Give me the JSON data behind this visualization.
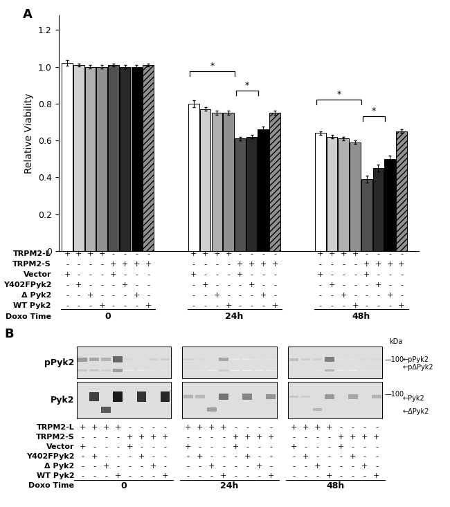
{
  "ylabel": "Relative Viability",
  "yticks": [
    0,
    0.2,
    0.4,
    0.6,
    0.8,
    1.0,
    1.2
  ],
  "groups": [
    "0",
    "24h",
    "48h"
  ],
  "bar_values": {
    "0": [
      1.02,
      1.01,
      1.0,
      1.0,
      1.01,
      1.0,
      1.0,
      1.01
    ],
    "24h": [
      0.8,
      0.77,
      0.75,
      0.75,
      0.61,
      0.62,
      0.66,
      0.75
    ],
    "48h": [
      0.64,
      0.62,
      0.61,
      0.59,
      0.39,
      0.45,
      0.5,
      0.65
    ]
  },
  "bar_errors": {
    "0": [
      0.015,
      0.008,
      0.008,
      0.008,
      0.008,
      0.008,
      0.008,
      0.008
    ],
    "24h": [
      0.018,
      0.01,
      0.01,
      0.01,
      0.01,
      0.01,
      0.015,
      0.01
    ],
    "48h": [
      0.01,
      0.01,
      0.01,
      0.01,
      0.018,
      0.018,
      0.018,
      0.01
    ]
  },
  "bar_colors": [
    "#ffffff",
    "#d0d0d0",
    "#b0b0b0",
    "#909090",
    "#505050",
    "#282828",
    "#000000",
    "#909090"
  ],
  "bar_hatch": [
    null,
    null,
    null,
    null,
    null,
    null,
    null,
    "////"
  ],
  "doxo_labels": [
    "0",
    "24h",
    "48h"
  ],
  "row_labels": [
    "TRPM2-L",
    "TRPM2-S",
    "Vector",
    "Y402FPyk2",
    "Δ Pyk2",
    "WT Pyk2"
  ],
  "table_data": [
    [
      "+",
      "+",
      "+",
      "+",
      "-",
      "-",
      "-",
      "-",
      "+",
      "+",
      "+",
      "+",
      "-",
      "-",
      "-",
      "-",
      "+",
      "+",
      "+",
      "+",
      "-",
      "-",
      "-",
      "-"
    ],
    [
      "-",
      "-",
      "-",
      "-",
      "+",
      "+",
      "+",
      "+",
      "-",
      "-",
      "-",
      "-",
      "+",
      "+",
      "+",
      "+",
      "-",
      "-",
      "-",
      "-",
      "+",
      "+",
      "+",
      "+"
    ],
    [
      "+",
      "-",
      "-",
      "-",
      "+",
      "-",
      "-",
      "-",
      "+",
      "-",
      "-",
      "-",
      "+",
      "-",
      "-",
      "-",
      "+",
      "-",
      "-",
      "-",
      "+",
      "-",
      "-",
      "-"
    ],
    [
      "-",
      "+",
      "-",
      "-",
      "-",
      "+",
      "-",
      "-",
      "-",
      "+",
      "-",
      "-",
      "-",
      "+",
      "-",
      "-",
      "-",
      "+",
      "-",
      "-",
      "-",
      "+",
      "-",
      "-"
    ],
    [
      "-",
      "-",
      "+",
      "-",
      "-",
      "-",
      "+",
      "-",
      "-",
      "-",
      "+",
      "-",
      "-",
      "-",
      "+",
      "-",
      "-",
      "-",
      "+",
      "-",
      "-",
      "-",
      "+",
      "-"
    ],
    [
      "-",
      "-",
      "-",
      "+",
      "-",
      "-",
      "-",
      "+",
      "-",
      "-",
      "-",
      "+",
      "-",
      "-",
      "-",
      "+",
      "-",
      "-",
      "-",
      "+",
      "-",
      "-",
      "-",
      "+"
    ]
  ],
  "wb_ppyk2_bands": {
    "g0": [
      [
        0.4,
        0.35,
        0.3,
        0.6,
        0.15,
        0.12,
        0.18,
        0.2
      ],
      [
        0.22,
        0.22,
        0.18,
        0.38,
        0.08,
        0.08,
        0.1,
        0.1
      ]
    ],
    "g1": [
      [
        0.18,
        0.15,
        0.12,
        0.35,
        0.08,
        0.08,
        0.1,
        0.1
      ],
      [
        0.1,
        0.1,
        0.08,
        0.2,
        0.05,
        0.05,
        0.08,
        0.08
      ]
    ],
    "g2": [
      [
        0.25,
        0.2,
        0.18,
        0.5,
        0.1,
        0.1,
        0.15,
        0.15
      ],
      [
        0.14,
        0.12,
        0.1,
        0.3,
        0.08,
        0.08,
        0.1,
        0.1
      ]
    ]
  },
  "wb_pyk2_upper": {
    "g0": [
      0.0,
      0.75,
      0.0,
      0.9,
      0.0,
      0.8,
      0.0,
      0.85
    ],
    "g1": [
      0.3,
      0.28,
      0.0,
      0.55,
      0.0,
      0.48,
      0.0,
      0.42
    ],
    "g2": [
      0.22,
      0.2,
      0.0,
      0.4,
      0.0,
      0.35,
      0.0,
      0.3
    ]
  },
  "wb_pyk2_lower": {
    "g0": [
      0.0,
      0.0,
      0.65,
      0.0,
      0.0,
      0.0,
      0.0,
      0.0
    ],
    "g1": [
      0.0,
      0.0,
      0.38,
      0.0,
      0.0,
      0.0,
      0.0,
      0.0
    ],
    "g2": [
      0.0,
      0.0,
      0.28,
      0.0,
      0.0,
      0.0,
      0.0,
      0.0
    ]
  }
}
